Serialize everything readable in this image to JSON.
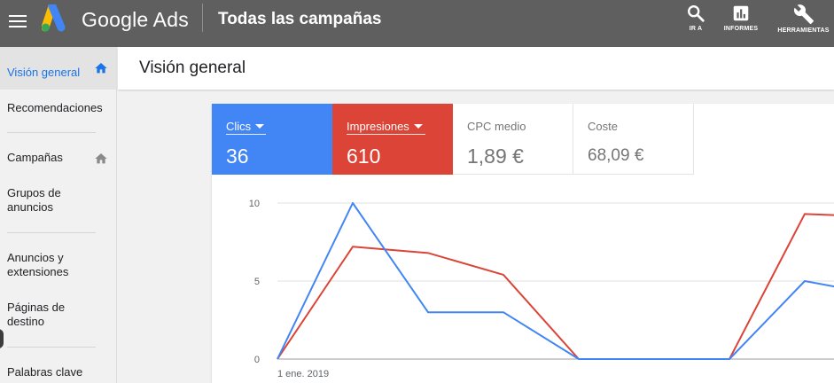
{
  "header": {
    "brand": "Google Ads",
    "section_title": "Todas las campañas",
    "tools": [
      {
        "label": "IR A",
        "icon": "search-icon"
      },
      {
        "label": "INFORMES",
        "icon": "bar-chart-icon"
      },
      {
        "label": "HERRAMIENTAS",
        "icon": "wrench-icon"
      }
    ]
  },
  "sidebar": {
    "items": [
      {
        "label": "Visión general",
        "active": true,
        "icon": "home-icon"
      },
      {
        "label": "Recomendaciones"
      },
      {
        "label": "Campañas",
        "icon": "home-icon"
      },
      {
        "label": "Grupos de anuncios"
      },
      {
        "label": "Anuncios y extensiones"
      },
      {
        "label": "Páginas de destino"
      },
      {
        "label": "Palabras clave"
      }
    ]
  },
  "main": {
    "title": "Visión general",
    "metrics": [
      {
        "label": "Clics",
        "value": "36",
        "color": "#4285f4"
      },
      {
        "label": "Impresiones",
        "value": "610",
        "color": "#db4437"
      },
      {
        "label": "CPC medio",
        "value": "1,89 €"
      },
      {
        "label": "Coste",
        "value": "68,09 €"
      }
    ]
  },
  "chart_data": {
    "type": "line",
    "x": [
      "1 ene. 2019",
      "",
      "",
      "",
      "",
      "",
      "",
      "",
      ""
    ],
    "x_tick_labels": [
      "1 ene. 2019"
    ],
    "y_tick_labels": [
      "0",
      "5",
      "10"
    ],
    "ylim": [
      0,
      10
    ],
    "grid": true,
    "series": [
      {
        "name": "Clics",
        "color": "#4285f4",
        "values": [
          0,
          10,
          3,
          3,
          0,
          0,
          0,
          5,
          4.1
        ]
      },
      {
        "name": "Impresiones",
        "color": "#db4437",
        "values": [
          0,
          7.2,
          6.8,
          5.4,
          0,
          0,
          0,
          9.3,
          9.1
        ]
      }
    ]
  }
}
